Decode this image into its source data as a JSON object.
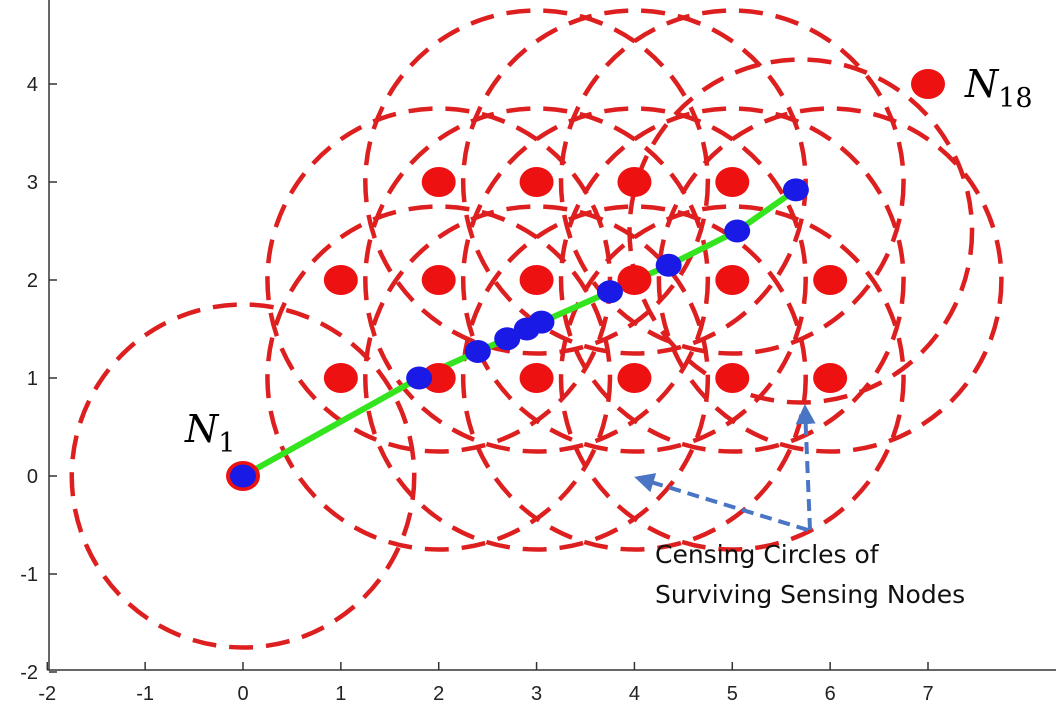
{
  "chart_data": {
    "type": "scatter",
    "xlim": [
      -2,
      7.5
    ],
    "ylim": [
      -2,
      4.6
    ],
    "x_ticks": [
      -2,
      -1,
      0,
      1,
      2,
      3,
      4,
      5,
      6,
      7
    ],
    "y_ticks": [
      -2,
      -1,
      0,
      1,
      2,
      3,
      4
    ],
    "grid": false,
    "sensing_nodes": [
      [
        0,
        0
      ],
      [
        1,
        1
      ],
      [
        2,
        1
      ],
      [
        3,
        1
      ],
      [
        4,
        1
      ],
      [
        5,
        1
      ],
      [
        6,
        1
      ],
      [
        1,
        2
      ],
      [
        2,
        2
      ],
      [
        3,
        2
      ],
      [
        4,
        2
      ],
      [
        5,
        2
      ],
      [
        6,
        2
      ],
      [
        2,
        3
      ],
      [
        3,
        3
      ],
      [
        4,
        3
      ],
      [
        5,
        3
      ],
      [
        7,
        4
      ]
    ],
    "sensing_radius": 1.75,
    "sensing_circle_centers": [
      [
        0,
        0
      ],
      [
        2,
        1
      ],
      [
        3,
        1
      ],
      [
        4,
        1
      ],
      [
        5,
        1
      ],
      [
        2,
        2
      ],
      [
        3,
        2
      ],
      [
        4,
        2
      ],
      [
        5,
        2
      ],
      [
        6,
        2
      ],
      [
        3,
        3
      ],
      [
        4,
        3
      ],
      [
        5,
        3
      ],
      [
        5.7,
        2.5
      ]
    ],
    "path": [
      [
        0,
        0
      ],
      [
        1.8,
        1.0
      ],
      [
        2.4,
        1.27
      ],
      [
        2.7,
        1.4
      ],
      [
        2.9,
        1.5
      ],
      [
        3.05,
        1.57
      ],
      [
        3.75,
        1.88
      ],
      [
        4.35,
        2.15
      ],
      [
        5.05,
        2.5
      ],
      [
        5.65,
        2.92
      ]
    ],
    "colors": {
      "sensing_node": "#ee1111",
      "circle": "#dd1f1f",
      "path": "#33e41e",
      "path_node": "#1a1ae6",
      "arrow": "#4a74c4",
      "axis": "#333333"
    },
    "labels": {
      "first_node": {
        "main": "N",
        "sub": "1"
      },
      "last_node": {
        "main": "N",
        "sub": "18"
      }
    },
    "annotation": {
      "line1": "Censing Circles of",
      "line2": "Surviving Sensing Nodes"
    }
  }
}
